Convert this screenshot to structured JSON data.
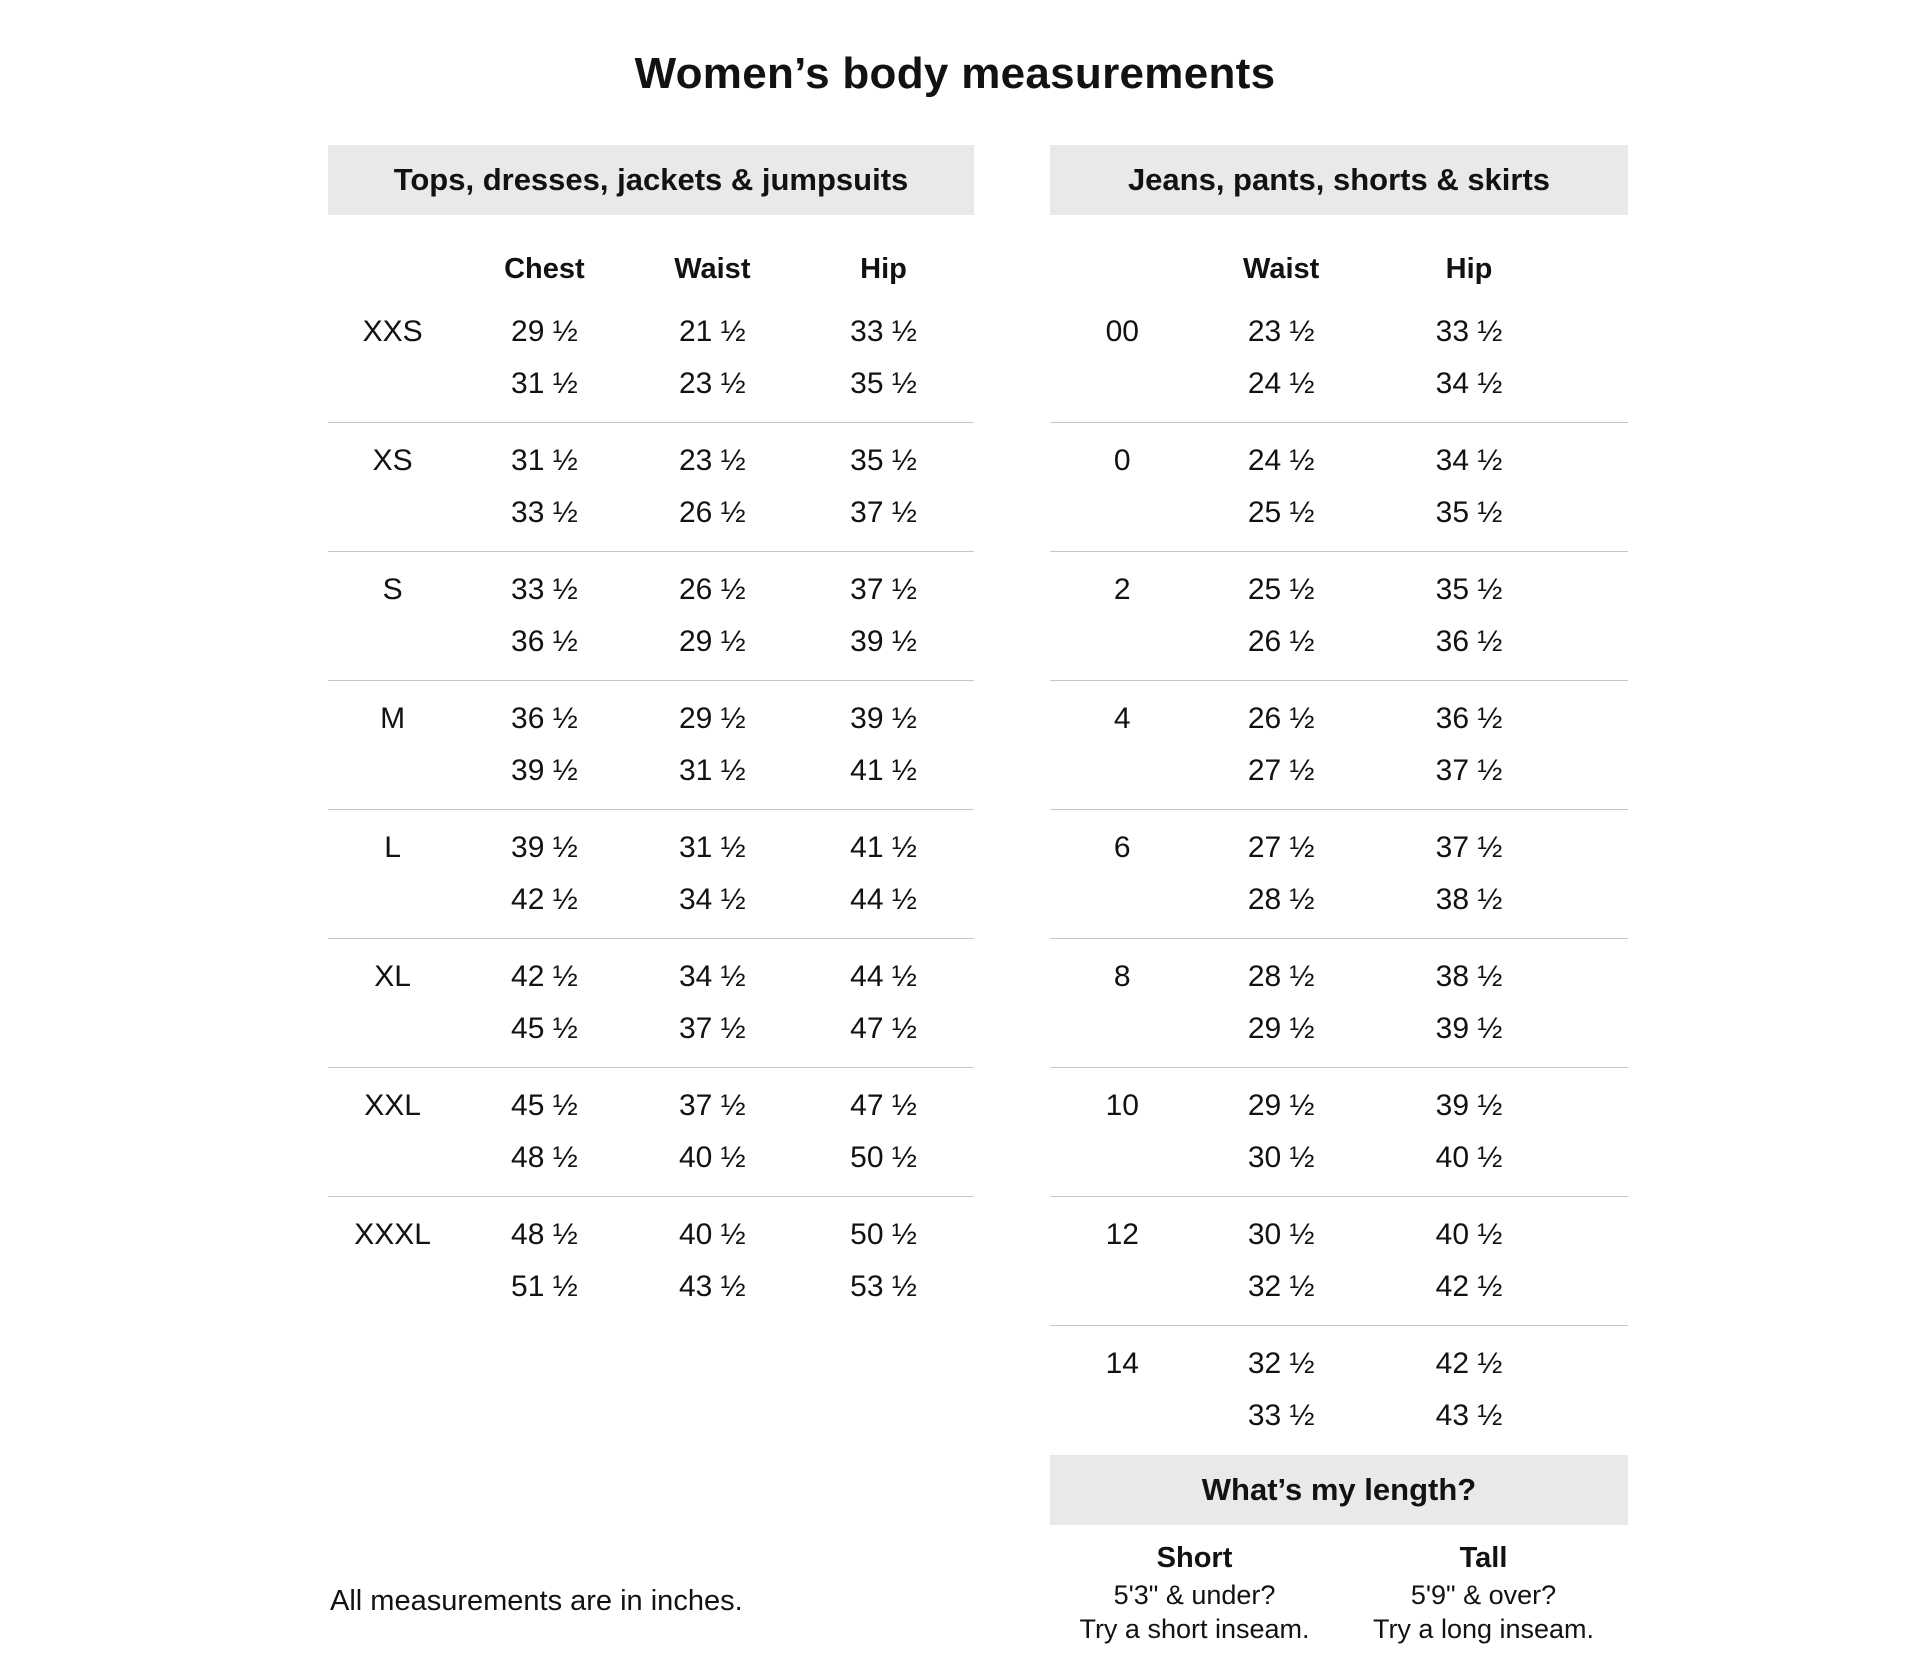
{
  "page": {
    "title": "Women’s body measurements",
    "footnote": "All measurements are in inches."
  },
  "tops_table": {
    "header": "Tops, dresses, jackets & jumpsuits",
    "columns": [
      "Chest",
      "Waist",
      "Hip"
    ],
    "rows": [
      {
        "size": "XXS",
        "min": [
          "29 ½",
          "21 ½",
          "33 ½"
        ],
        "max": [
          "31 ½",
          "23 ½",
          "35 ½"
        ]
      },
      {
        "size": "XS",
        "min": [
          "31 ½",
          "23 ½",
          "35 ½"
        ],
        "max": [
          "33 ½",
          "26 ½",
          "37 ½"
        ]
      },
      {
        "size": "S",
        "min": [
          "33 ½",
          "26 ½",
          "37 ½"
        ],
        "max": [
          "36 ½",
          "29 ½",
          "39 ½"
        ]
      },
      {
        "size": "M",
        "min": [
          "36 ½",
          "29 ½",
          "39 ½"
        ],
        "max": [
          "39 ½",
          "31 ½",
          "41 ½"
        ]
      },
      {
        "size": "L",
        "min": [
          "39 ½",
          "31 ½",
          "41 ½"
        ],
        "max": [
          "42 ½",
          "34 ½",
          "44 ½"
        ]
      },
      {
        "size": "XL",
        "min": [
          "42 ½",
          "34 ½",
          "44 ½"
        ],
        "max": [
          "45 ½",
          "37 ½",
          "47 ½"
        ]
      },
      {
        "size": "XXL",
        "min": [
          "45 ½",
          "37 ½",
          "47 ½"
        ],
        "max": [
          "48 ½",
          "40 ½",
          "50 ½"
        ]
      },
      {
        "size": "XXXL",
        "min": [
          "48 ½",
          "40 ½",
          "50 ½"
        ],
        "max": [
          "51 ½",
          "43 ½",
          "53 ½"
        ]
      }
    ]
  },
  "bottoms_table": {
    "header": "Jeans, pants, shorts & skirts",
    "columns": [
      "Waist",
      "Hip"
    ],
    "rows": [
      {
        "size": "00",
        "min": [
          "23 ½",
          "33 ½"
        ],
        "max": [
          "24 ½",
          "34 ½"
        ]
      },
      {
        "size": "0",
        "min": [
          "24 ½",
          "34 ½"
        ],
        "max": [
          "25 ½",
          "35 ½"
        ]
      },
      {
        "size": "2",
        "min": [
          "25 ½",
          "35 ½"
        ],
        "max": [
          "26 ½",
          "36 ½"
        ]
      },
      {
        "size": "4",
        "min": [
          "26 ½",
          "36 ½"
        ],
        "max": [
          "27 ½",
          "37 ½"
        ]
      },
      {
        "size": "6",
        "min": [
          "27 ½",
          "37 ½"
        ],
        "max": [
          "28 ½",
          "38 ½"
        ]
      },
      {
        "size": "8",
        "min": [
          "28 ½",
          "38 ½"
        ],
        "max": [
          "29 ½",
          "39 ½"
        ]
      },
      {
        "size": "10",
        "min": [
          "29 ½",
          "39 ½"
        ],
        "max": [
          "30 ½",
          "40 ½"
        ]
      },
      {
        "size": "12",
        "min": [
          "30 ½",
          "40 ½"
        ],
        "max": [
          "32 ½",
          "42 ½"
        ]
      },
      {
        "size": "14",
        "min": [
          "32 ½",
          "42 ½"
        ],
        "max": [
          "33 ½",
          "43 ½"
        ]
      }
    ]
  },
  "length_section": {
    "header": "What’s my length?",
    "options": [
      {
        "label": "Short",
        "line1": "5'3\" & under?",
        "line2": "Try a short inseam."
      },
      {
        "label": "Tall",
        "line1": "5'9\" & over?",
        "line2": "Try a long inseam."
      }
    ]
  },
  "colors": {
    "background": "#ffffff",
    "band_gray": "#e9e9e9",
    "divider_gray": "#c6c6c6",
    "text": "#121212"
  }
}
